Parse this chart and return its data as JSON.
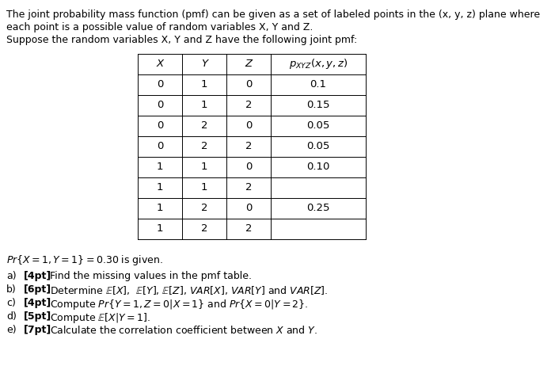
{
  "title_lines": [
    "The joint probability mass function (pmf) can be given as a set of labeled points in the (x, y, z) plane where",
    "each point is a possible value of random variables X, Y and Z.",
    "Suppose the random variables X, Y and Z have the following joint pmf:"
  ],
  "table_data": [
    [
      "0",
      "1",
      "0",
      "0.1"
    ],
    [
      "0",
      "1",
      "2",
      "0.15"
    ],
    [
      "0",
      "2",
      "0",
      "0.05"
    ],
    [
      "0",
      "2",
      "2",
      "0.05"
    ],
    [
      "1",
      "1",
      "0",
      "0.10"
    ],
    [
      "1",
      "1",
      "2",
      ""
    ],
    [
      "1",
      "2",
      "0",
      "0.25"
    ],
    [
      "1",
      "2",
      "2",
      ""
    ]
  ],
  "bg_color": "#ffffff",
  "text_color": "#000000",
  "font_size": 9.0,
  "table_font_size": 9.5
}
